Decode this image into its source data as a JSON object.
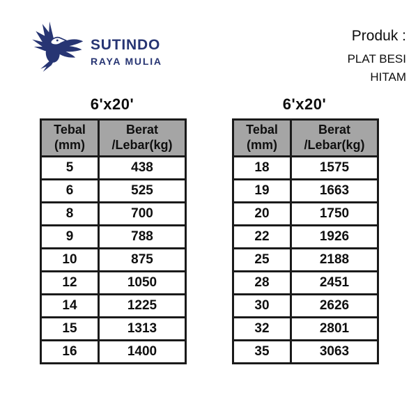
{
  "logo": {
    "company_line1": "SUTINDO",
    "company_line2": "RAYA MULIA"
  },
  "product": {
    "label": "Produk :",
    "name_line1": "PLAT BESI",
    "name_line2": "HITAM"
  },
  "tables": [
    {
      "title": "6'x20'",
      "columns": [
        [
          "Tebal",
          "(mm)"
        ],
        [
          "Berat",
          "/Lebar(kg)"
        ]
      ],
      "rows": [
        [
          "5",
          "438"
        ],
        [
          "6",
          "525"
        ],
        [
          "8",
          "700"
        ],
        [
          "9",
          "788"
        ],
        [
          "10",
          "875"
        ],
        [
          "12",
          "1050"
        ],
        [
          "14",
          "1225"
        ],
        [
          "15",
          "1313"
        ],
        [
          "16",
          "1400"
        ]
      ]
    },
    {
      "title": "6'x20'",
      "columns": [
        [
          "Tebal",
          "(mm)"
        ],
        [
          "Berat",
          "/Lebar(kg)"
        ]
      ],
      "rows": [
        [
          "18",
          "1575"
        ],
        [
          "19",
          "1663"
        ],
        [
          "20",
          "1750"
        ],
        [
          "22",
          "1926"
        ],
        [
          "25",
          "2188"
        ],
        [
          "28",
          "2451"
        ],
        [
          "30",
          "2626"
        ],
        [
          "32",
          "2801"
        ],
        [
          "35",
          "3063"
        ]
      ]
    }
  ],
  "colors": {
    "header_bg": "#a5a5a5",
    "table_border": "#1a1a1a",
    "logo_navy": "#273573"
  },
  "icons": {
    "logo": "eagle-icon"
  }
}
